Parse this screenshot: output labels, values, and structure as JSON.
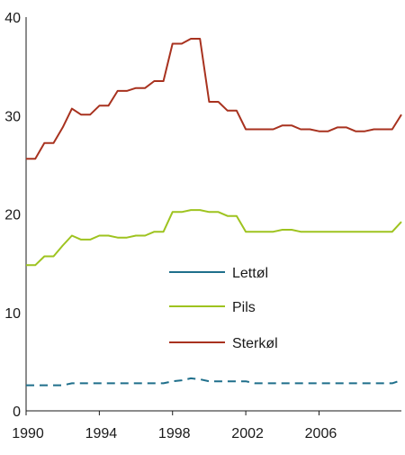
{
  "chart_data": {
    "type": "line",
    "title": "",
    "xlabel": "",
    "ylabel": "",
    "xlim": [
      1990,
      2010.5
    ],
    "ylim": [
      0,
      40
    ],
    "grid": false,
    "legend_position": "center",
    "x_ticks": [
      1990,
      1994,
      1998,
      2002,
      2006
    ],
    "y_ticks": [
      0,
      10,
      20,
      30,
      40
    ],
    "x": [
      1990,
      1990.5,
      1991,
      1991.5,
      1992,
      1992.5,
      1993,
      1993.5,
      1994,
      1994.5,
      1995,
      1995.5,
      1996,
      1996.5,
      1997,
      1997.5,
      1998,
      1998.5,
      1999,
      1999.5,
      2000,
      2000.5,
      2001,
      2001.5,
      2002,
      2002.5,
      2003,
      2003.5,
      2004,
      2004.5,
      2005,
      2005.5,
      2006,
      2006.5,
      2007,
      2007.5,
      2008,
      2008.5,
      2009,
      2009.5,
      2010,
      2010.5
    ],
    "series": [
      {
        "name": "Lettøl",
        "color": "#1f6f8b",
        "dash": true,
        "values": [
          2.6,
          2.6,
          2.6,
          2.6,
          2.6,
          2.8,
          2.8,
          2.8,
          2.8,
          2.8,
          2.8,
          2.8,
          2.8,
          2.8,
          2.8,
          2.8,
          3.0,
          3.1,
          3.3,
          3.2,
          3.0,
          3.0,
          3.0,
          3.0,
          3.0,
          2.8,
          2.8,
          2.8,
          2.8,
          2.8,
          2.8,
          2.8,
          2.8,
          2.8,
          2.8,
          2.8,
          2.8,
          2.8,
          2.8,
          2.8,
          2.8,
          3.1
        ]
      },
      {
        "name": "Pils",
        "color": "#9ec31f",
        "dash": false,
        "values": [
          14.8,
          14.8,
          15.7,
          15.7,
          16.8,
          17.8,
          17.4,
          17.4,
          17.8,
          17.8,
          17.6,
          17.6,
          17.8,
          17.8,
          18.2,
          18.2,
          20.2,
          20.2,
          20.4,
          20.4,
          20.2,
          20.2,
          19.8,
          19.8,
          18.2,
          18.2,
          18.2,
          18.2,
          18.4,
          18.4,
          18.2,
          18.2,
          18.2,
          18.2,
          18.2,
          18.2,
          18.2,
          18.2,
          18.2,
          18.2,
          18.2,
          19.2
        ]
      },
      {
        "name": "Sterkøl",
        "color": "#a8321f",
        "dash": false,
        "values": [
          25.6,
          25.6,
          27.2,
          27.2,
          28.8,
          30.7,
          30.1,
          30.1,
          31.0,
          31.0,
          32.5,
          32.5,
          32.8,
          32.8,
          33.5,
          33.5,
          37.3,
          37.3,
          37.8,
          37.8,
          31.4,
          31.4,
          30.5,
          30.5,
          28.6,
          28.6,
          28.6,
          28.6,
          29.0,
          29.0,
          28.6,
          28.6,
          28.4,
          28.4,
          28.8,
          28.8,
          28.4,
          28.4,
          28.6,
          28.6,
          28.6,
          30.1
        ]
      }
    ]
  }
}
